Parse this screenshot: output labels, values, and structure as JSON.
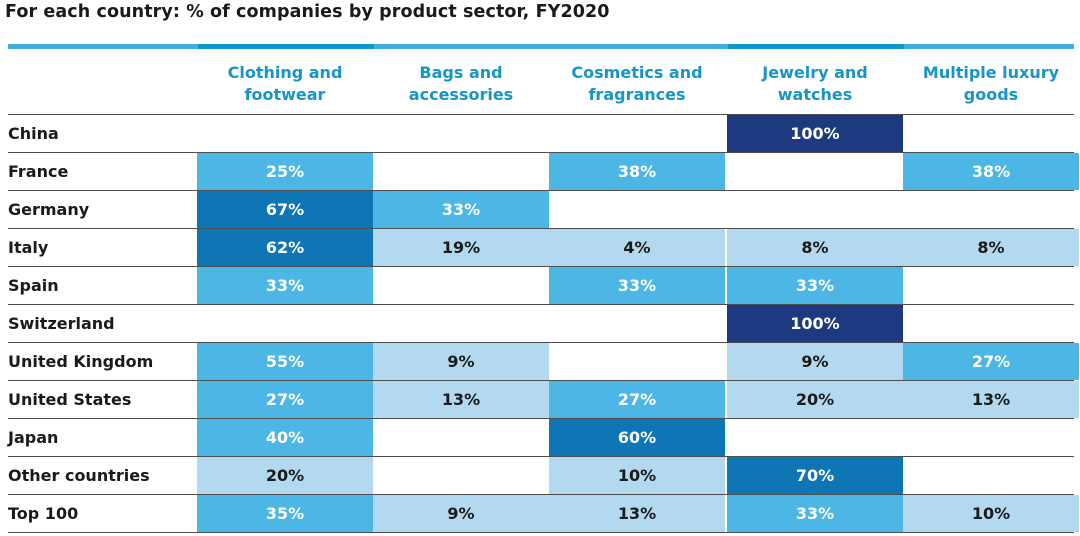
{
  "title": "For each country: % of companies by product sector, FY2020",
  "colors": {
    "level_lightest": "#b3d9f0",
    "level_light": "#4cb6e4",
    "level_medium": "#0f76b6",
    "level_dark": "#1d3a80",
    "header_text": "#1795c6",
    "header_bar": "#3fb0de"
  },
  "chart_data": {
    "type": "heatmap",
    "title": "For each country: % of companies by product sector, FY2020",
    "columns": [
      [
        "Clothing and",
        "footwear"
      ],
      [
        "Bags and",
        "accessories"
      ],
      [
        "Cosmetics and",
        "fragrances"
      ],
      [
        "Jewelry and",
        "watches"
      ],
      [
        "Multiple luxury",
        "goods"
      ]
    ],
    "rows": [
      "China",
      "France",
      "Germany",
      "Italy",
      "Spain",
      "Switzerland",
      "United Kingdom",
      "United States",
      "Japan",
      "Other countries",
      "Top 100"
    ],
    "unit": "%",
    "values": [
      [
        null,
        null,
        null,
        100,
        null
      ],
      [
        25,
        null,
        38,
        null,
        38
      ],
      [
        67,
        33,
        null,
        null,
        null
      ],
      [
        62,
        19,
        4,
        8,
        8
      ],
      [
        33,
        null,
        33,
        33,
        null
      ],
      [
        null,
        null,
        null,
        100,
        null
      ],
      [
        55,
        9,
        null,
        9,
        27
      ],
      [
        27,
        13,
        27,
        20,
        13
      ],
      [
        40,
        null,
        60,
        null,
        null
      ],
      [
        20,
        null,
        10,
        70,
        null
      ],
      [
        35,
        9,
        13,
        33,
        10
      ]
    ]
  }
}
